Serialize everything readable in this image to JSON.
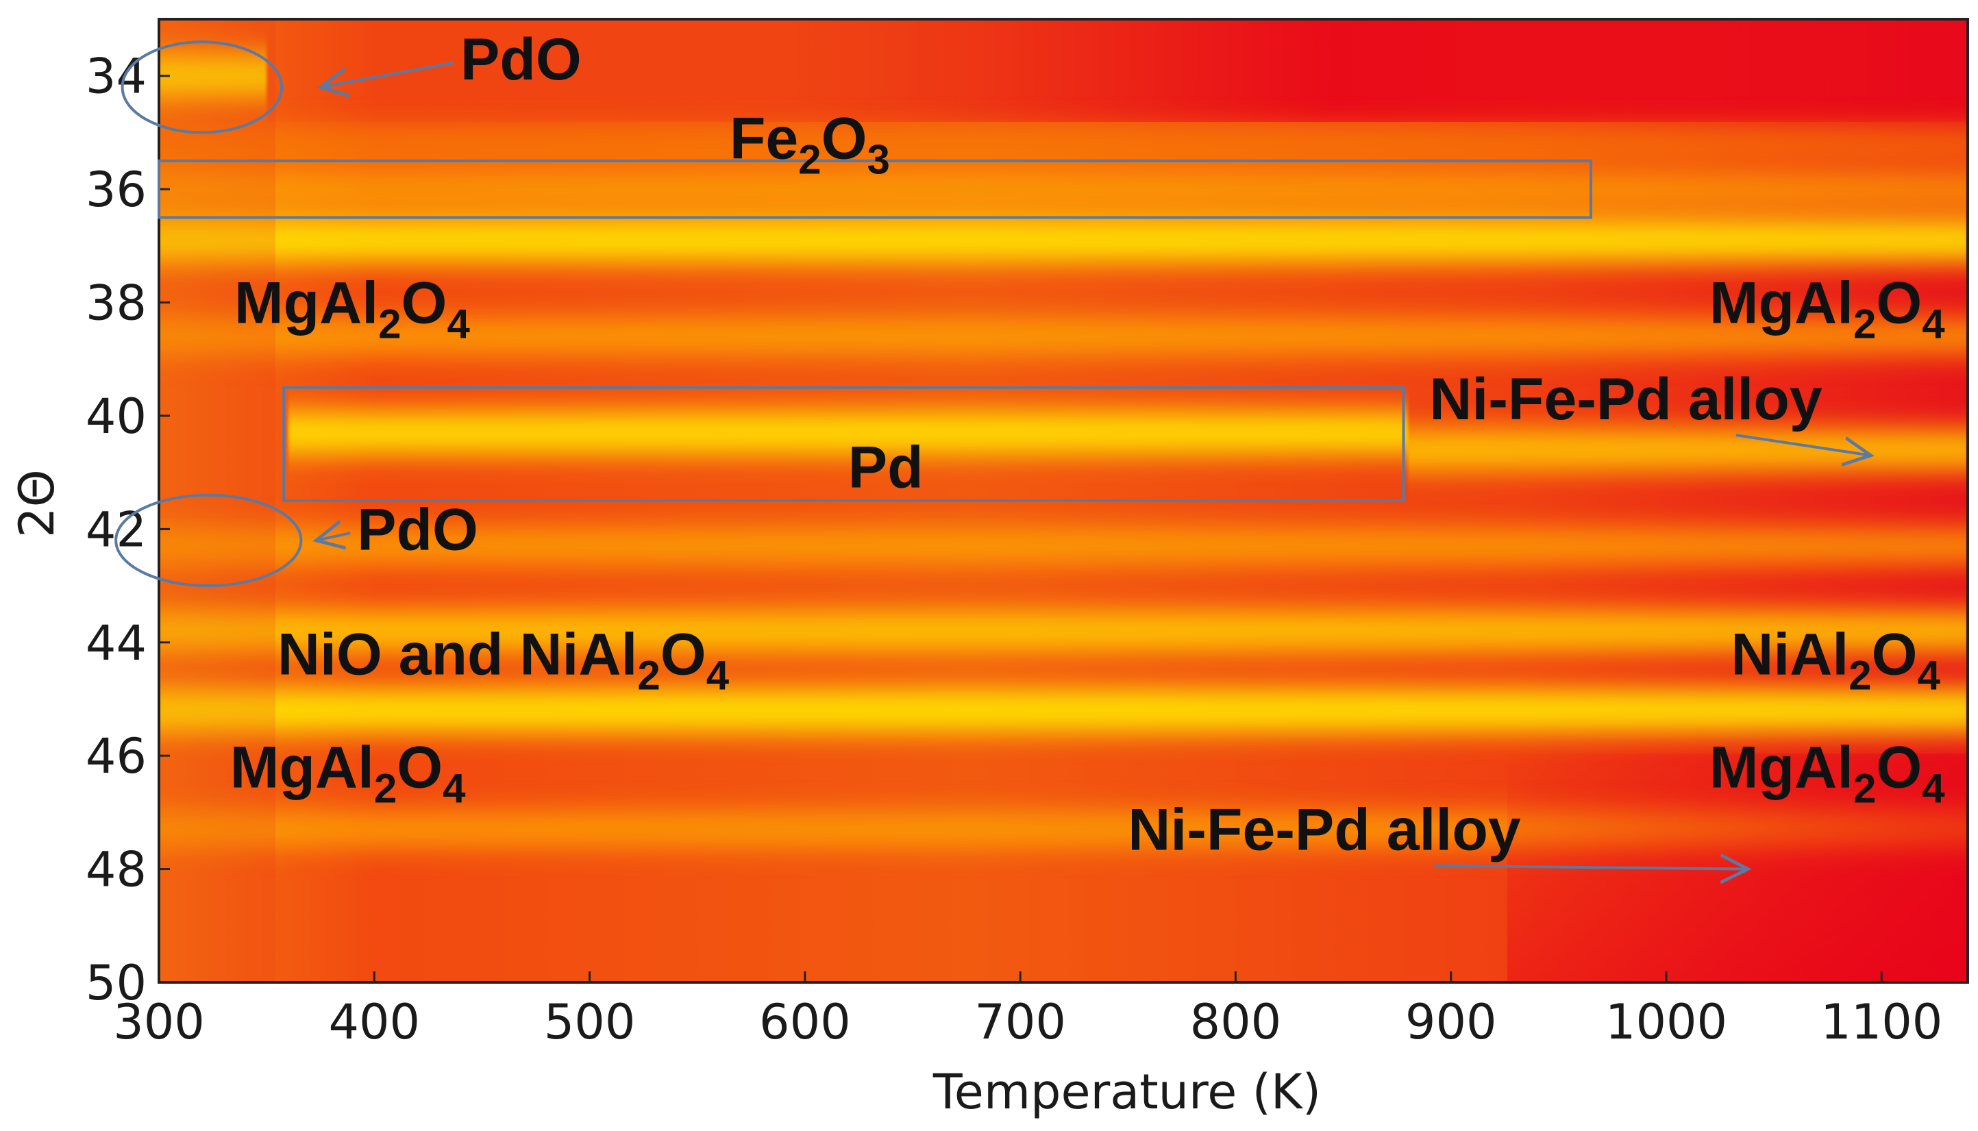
{
  "chart_data": {
    "type": "heatmap",
    "title": "",
    "xlabel": "Temperature (K)",
    "ylabel": "2Θ",
    "xlim": [
      300,
      1140
    ],
    "ylim": [
      33,
      50
    ],
    "y_inverted": true,
    "x_ticks": [
      "300",
      "400",
      "500",
      "600",
      "700",
      "800",
      "900",
      "1000",
      "1100"
    ],
    "y_ticks": [
      "34",
      "36",
      "38",
      "40",
      "42",
      "44",
      "46",
      "48",
      "50"
    ],
    "colormap": [
      "#e6001a",
      "#f25a0f",
      "#ffb000",
      "#ffe800"
    ],
    "bands": [
      {
        "two_theta": 34.0,
        "intensity": 0.95,
        "t_min": 300,
        "t_max": 350
      },
      {
        "two_theta": 35.2,
        "intensity": 0.35,
        "t_min": 300,
        "t_max": 1140
      },
      {
        "two_theta": 36.0,
        "intensity": 0.55,
        "t_min": 300,
        "t_max": 1140
      },
      {
        "two_theta": 36.9,
        "intensity": 0.95,
        "t_min": 300,
        "t_max": 1140
      },
      {
        "two_theta": 38.6,
        "intensity": 0.55,
        "t_min": 300,
        "t_max": 1140
      },
      {
        "two_theta": 40.3,
        "intensity": 0.9,
        "t_min": 360,
        "t_max": 880
      },
      {
        "two_theta": 40.6,
        "intensity": 0.8,
        "t_min": 880,
        "t_max": 1140
      },
      {
        "two_theta": 42.3,
        "intensity": 0.55,
        "t_min": 300,
        "t_max": 1140
      },
      {
        "two_theta": 43.8,
        "intensity": 0.8,
        "t_min": 300,
        "t_max": 1140
      },
      {
        "two_theta": 45.2,
        "intensity": 0.95,
        "t_min": 300,
        "t_max": 1140
      },
      {
        "two_theta": 47.3,
        "intensity": 0.5,
        "t_min": 300,
        "t_max": 1140
      }
    ],
    "annotations": [
      {
        "id": "pdo-top",
        "text": "PdO",
        "t": 440,
        "two_theta": 33.7,
        "arrow_to": [
          375,
          34.2
        ]
      },
      {
        "id": "fe2o3",
        "text": "Fe",
        "sub1": "2",
        "text2": "O",
        "sub2": "3",
        "t": 565,
        "two_theta": 35.1
      },
      {
        "id": "mgal2o4-left-1",
        "text": "MgAl",
        "sub1": "2",
        "text2": "O",
        "sub2": "4",
        "t": 335,
        "two_theta": 38.0
      },
      {
        "id": "mgal2o4-right-1",
        "text": "MgAl",
        "sub1": "2",
        "text2": "O",
        "sub2": "4",
        "t": 1020,
        "two_theta": 38.0
      },
      {
        "id": "alloy-right-1",
        "text": "Ni-Fe-Pd alloy",
        "t": 890,
        "two_theta": 39.7,
        "arrow_to": [
          1095,
          40.7
        ]
      },
      {
        "id": "pd",
        "text": "Pd",
        "t": 620,
        "two_theta": 40.9
      },
      {
        "id": "pdo-bottom",
        "text": "PdO",
        "t": 392,
        "two_theta": 42.0,
        "arrow_to": [
          373,
          42.2
        ]
      },
      {
        "id": "nio-nial2o4",
        "text": "NiO and NiAl",
        "sub1": "2",
        "text2": "O",
        "sub2": "4",
        "t": 355,
        "two_theta": 44.2
      },
      {
        "id": "nial2o4-right",
        "text": "NiAl",
        "sub1": "2",
        "text2": "O",
        "sub2": "4",
        "t": 1030,
        "two_theta": 44.2
      },
      {
        "id": "mgal2o4-left-2",
        "text": "MgAl",
        "sub1": "2",
        "text2": "O",
        "sub2": "4",
        "t": 333,
        "two_theta": 46.2
      },
      {
        "id": "mgal2o4-right-2",
        "text": "MgAl",
        "sub1": "2",
        "text2": "O",
        "sub2": "4",
        "t": 1020,
        "two_theta": 46.2
      },
      {
        "id": "alloy-right-2",
        "text": "Ni-Fe-Pd alloy",
        "t": 750,
        "two_theta": 47.3,
        "arrow_to": [
          1038,
          48.0
        ]
      }
    ],
    "outlines": [
      {
        "id": "fe2o3-box",
        "shape": "rect",
        "t_range": [
          300,
          965
        ],
        "two_theta_range": [
          35.5,
          36.5
        ]
      },
      {
        "id": "pd-box",
        "shape": "rect",
        "t_range": [
          358,
          878
        ],
        "two_theta_range": [
          39.5,
          41.5
        ]
      },
      {
        "id": "pdo-top-ellipse",
        "shape": "ellipse",
        "center": [
          320,
          34.2
        ],
        "radius_t": 37,
        "radius_two_theta": 0.8
      },
      {
        "id": "pdo-bottom-ellipse",
        "shape": "ellipse",
        "center": [
          323,
          42.2
        ],
        "radius_t": 43,
        "radius_two_theta": 0.8
      }
    ]
  }
}
